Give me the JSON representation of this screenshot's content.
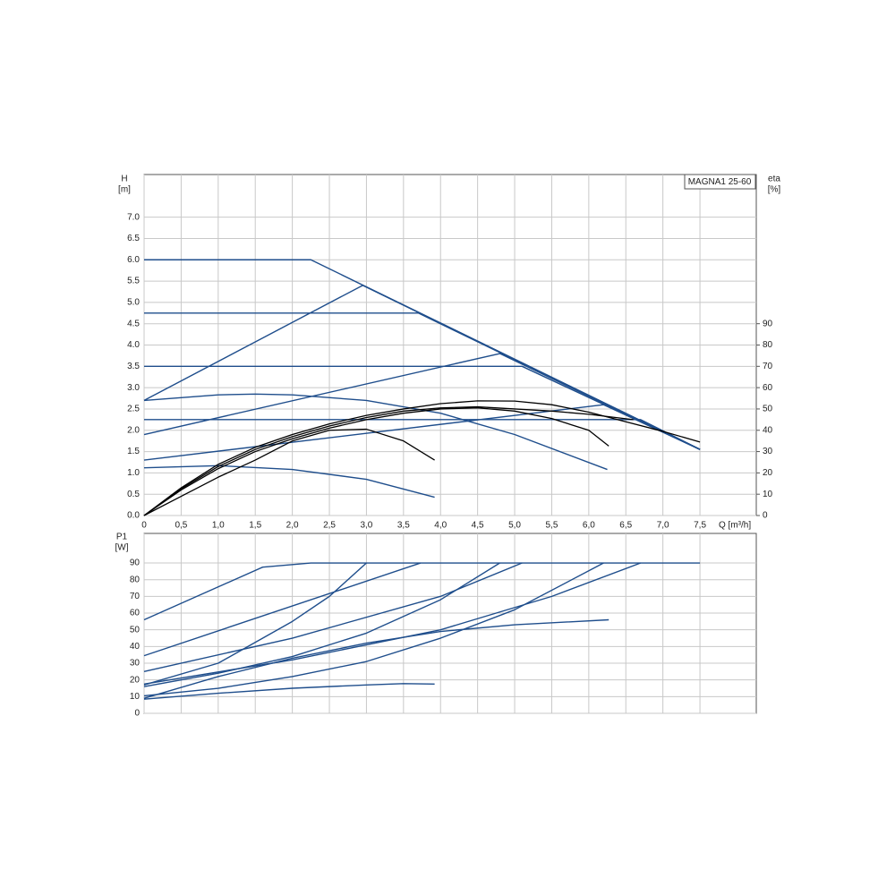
{
  "chart_data": [
    {
      "type": "line",
      "title": "MAGNA1 25-60",
      "ylabel": [
        "H",
        "[m]"
      ],
      "y2label": [
        "eta",
        "[%]"
      ],
      "xlabel": "Q [m³/h]",
      "xlim": [
        0,
        8.26
      ],
      "ylim": [
        0,
        8.0
      ],
      "y2lim": [
        0,
        160
      ],
      "grid": true,
      "xticks": [
        0,
        {
          "value": 0.5,
          "label": "0,5"
        },
        {
          "value": 1,
          "label": "1,0"
        },
        {
          "value": 1.5,
          "label": "1,5"
        },
        {
          "value": 2,
          "label": "2,0"
        },
        {
          "value": 2.5,
          "label": "2,5"
        },
        {
          "value": 3,
          "label": "3,0"
        },
        {
          "value": 3.5,
          "label": "3,5"
        },
        {
          "value": 4,
          "label": "4,0"
        },
        {
          "value": 4.5,
          "label": "4,5"
        },
        {
          "value": 5,
          "label": "5,0"
        },
        {
          "value": 5.5,
          "label": "5,5"
        },
        {
          "value": 6,
          "label": "6,0"
        },
        {
          "value": 6.5,
          "label": "6,5"
        },
        {
          "value": 7,
          "label": "7,0"
        },
        {
          "value": 7.5,
          "label": "7,5"
        }
      ],
      "yticks": [
        {
          "value": 0,
          "label": "0.0"
        },
        {
          "value": 0.5,
          "label": "0.5"
        },
        {
          "value": 1,
          "label": "1.0"
        },
        {
          "value": 1.5,
          "label": "1.5"
        },
        {
          "value": 2,
          "label": "2.0"
        },
        {
          "value": 2.5,
          "label": "2.5"
        },
        {
          "value": 3,
          "label": "3.0"
        },
        {
          "value": 3.5,
          "label": "3.5"
        },
        {
          "value": 4,
          "label": "4.0"
        },
        {
          "value": 4.5,
          "label": "4.5"
        },
        {
          "value": 5,
          "label": "5.0"
        },
        {
          "value": 5.5,
          "label": "5.5"
        },
        {
          "value": 6,
          "label": "6.0"
        },
        {
          "value": 6.5,
          "label": "6.5"
        },
        {
          "value": 7,
          "label": "7.0"
        }
      ],
      "y2ticks": [
        0,
        10,
        20,
        30,
        40,
        50,
        60,
        70,
        80,
        90
      ],
      "series": [
        {
          "color": "#1f4e8c",
          "x": [
            0,
            2.25,
            7.5
          ],
          "values": [
            6.0,
            6.0,
            1.55
          ]
        },
        {
          "color": "#1f4e8c",
          "x": [
            0,
            3.7,
            7.5
          ],
          "values": [
            4.75,
            4.75,
            1.55
          ]
        },
        {
          "color": "#1f4e8c",
          "x": [
            0,
            5.1,
            7.5
          ],
          "values": [
            3.5,
            3.5,
            1.55
          ]
        },
        {
          "color": "#1f4e8c",
          "x": [
            0,
            6.7,
            7.5
          ],
          "values": [
            2.25,
            2.25,
            1.55
          ]
        },
        {
          "color": "#1f4e8c",
          "x": [
            0,
            2.95,
            7.5
          ],
          "values": [
            2.7,
            5.4,
            1.55
          ]
        },
        {
          "color": "#1f4e8c",
          "x": [
            0,
            4.8,
            7.5
          ],
          "values": [
            1.9,
            3.8,
            1.55
          ]
        },
        {
          "color": "#1f4e8c",
          "x": [
            0,
            6.2,
            7.5
          ],
          "values": [
            1.3,
            2.6,
            1.55
          ]
        },
        {
          "color": "#1f4e8c",
          "x": [
            0,
            1,
            1.5,
            2,
            3,
            4,
            5,
            6.25
          ],
          "values": [
            2.7,
            2.83,
            2.85,
            2.83,
            2.7,
            2.4,
            1.9,
            1.08
          ]
        },
        {
          "color": "#1f4e8c",
          "x": [
            0,
            1,
            2,
            3,
            3.92
          ],
          "values": [
            1.12,
            1.17,
            1.08,
            0.85,
            0.43
          ]
        },
        {
          "color": "#000000",
          "axis": "y2",
          "x": [
            0,
            0.5,
            1,
            1.5,
            2,
            2.5,
            3,
            3.5,
            4,
            4.5,
            5,
            5.5,
            6,
            6.5,
            7,
            7.5
          ],
          "values": [
            0,
            13,
            24,
            32,
            38,
            43,
            47,
            50,
            52.5,
            53.8,
            53.7,
            52,
            48.5,
            44,
            39.5,
            34.5
          ]
        },
        {
          "color": "#000000",
          "axis": "y2",
          "x": [
            0,
            0.5,
            1,
            1.5,
            2,
            2.5,
            3,
            3.5,
            4,
            4.5,
            5,
            5.5,
            6,
            6.27
          ],
          "values": [
            0,
            12,
            22,
            30,
            36,
            41,
            45,
            48,
            50,
            50.5,
            49,
            45.5,
            40,
            32.6
          ]
        },
        {
          "color": "#000000",
          "axis": "y2",
          "x": [
            0,
            0.5,
            1,
            1.5,
            2,
            2.5,
            3,
            3.5,
            3.92
          ],
          "values": [
            0,
            9,
            18,
            26,
            35,
            40,
            40.5,
            35,
            26
          ]
        },
        {
          "color": "#000000",
          "axis": "y2",
          "x": [
            0,
            0.5,
            1,
            1.5,
            2,
            2.5,
            3,
            3.5,
            4,
            4.5,
            5,
            5.5,
            6,
            6.6
          ],
          "values": [
            0,
            12.5,
            23,
            31,
            37,
            42,
            46,
            49,
            50.5,
            51,
            50,
            49,
            47.5,
            45
          ]
        }
      ]
    },
    {
      "type": "line",
      "ylabel": [
        "P1",
        "[W]"
      ],
      "xlim": [
        0,
        8.26
      ],
      "ylim": [
        0,
        107.7
      ],
      "grid": true,
      "yticks": [
        0,
        10,
        20,
        30,
        40,
        50,
        60,
        70,
        80,
        90
      ],
      "series": [
        {
          "color": "#1f4e8c",
          "x": [
            0,
            1.6,
            2.25,
            7.5
          ],
          "values": [
            56,
            87.5,
            90,
            90
          ]
        },
        {
          "color": "#1f4e8c",
          "x": [
            0,
            3.73
          ],
          "values": [
            34.5,
            90
          ]
        },
        {
          "color": "#1f4e8c",
          "x": [
            0,
            1,
            2,
            2.5,
            3
          ],
          "values": [
            17,
            30,
            55,
            70,
            90
          ]
        },
        {
          "color": "#1f4e8c",
          "x": [
            0,
            2,
            4,
            5.1
          ],
          "values": [
            25,
            45,
            70,
            90
          ]
        },
        {
          "color": "#1f4e8c",
          "x": [
            0,
            1,
            2,
            3,
            4,
            4.8
          ],
          "values": [
            16,
            24,
            34,
            48,
            68,
            90
          ]
        },
        {
          "color": "#1f4e8c",
          "x": [
            0,
            1,
            2,
            3,
            4,
            5,
            6.2
          ],
          "values": [
            10.5,
            15,
            22,
            31,
            45,
            62,
            90
          ]
        },
        {
          "color": "#1f4e8c",
          "x": [
            0,
            2,
            4,
            5.5,
            6.7
          ],
          "values": [
            17.5,
            32,
            50,
            70,
            90
          ]
        },
        {
          "color": "#1f4e8c",
          "x": [
            0,
            1,
            2,
            3,
            4,
            5,
            6.27
          ],
          "values": [
            9,
            22,
            33,
            42,
            49,
            53,
            56
          ]
        },
        {
          "color": "#1f4e8c",
          "x": [
            0,
            1,
            2,
            3,
            3.5,
            3.92
          ],
          "values": [
            8.5,
            12,
            15,
            17,
            17.8,
            17.5
          ]
        }
      ]
    }
  ]
}
